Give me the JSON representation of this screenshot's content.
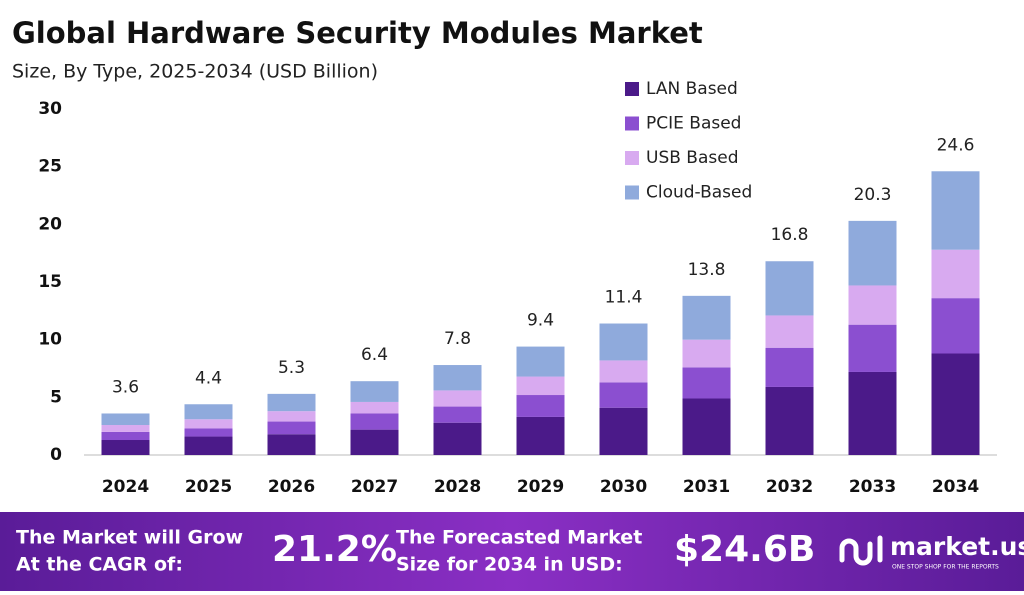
{
  "chart_data": {
    "type": "stacked-bar",
    "title": "Global Hardware Security Modules Market",
    "subtitle": "Size, By Type, 2025-2034 (USD Billion)",
    "categories": [
      "2024",
      "2025",
      "2026",
      "2027",
      "2028",
      "2029",
      "2030",
      "2031",
      "2032",
      "2033",
      "2034"
    ],
    "series": [
      {
        "name": "LAN Based",
        "color": "#4b1a89",
        "values": [
          1.3,
          1.6,
          1.8,
          2.2,
          2.8,
          3.3,
          4.1,
          4.9,
          5.9,
          7.2,
          8.8
        ]
      },
      {
        "name": "PCIE Based",
        "color": "#8b4fd0",
        "values": [
          0.7,
          0.7,
          1.1,
          1.4,
          1.4,
          1.9,
          2.2,
          2.7,
          3.4,
          4.1,
          4.8
        ]
      },
      {
        "name": "USB Based",
        "color": "#d8aaf0",
        "values": [
          0.6,
          0.8,
          0.9,
          1.0,
          1.4,
          1.6,
          1.9,
          2.4,
          2.8,
          3.4,
          4.2
        ]
      },
      {
        "name": "Cloud-Based",
        "color": "#8faadc",
        "values": [
          1.0,
          1.3,
          1.5,
          1.8,
          2.2,
          2.6,
          3.2,
          3.8,
          4.7,
          5.6,
          6.8
        ]
      }
    ],
    "totals": [
      3.6,
      4.4,
      5.3,
      6.4,
      7.8,
      9.4,
      11.4,
      13.8,
      16.8,
      20.3,
      24.6
    ],
    "ylim": [
      0,
      30
    ],
    "yticks": [
      0,
      5,
      10,
      15,
      20,
      25,
      30
    ],
    "grid": false
  },
  "footer": {
    "cagr_text_1": "The Market will Grow",
    "cagr_text_2": "At the CAGR of:",
    "cagr": "21.2%",
    "forecast_text_1": "The Forecasted Market",
    "forecast_text_2": "Size for 2034 in USD:",
    "forecast": "$24.6B",
    "brand": "market.us",
    "tagline": "ONE STOP SHOP FOR THE REPORTS"
  }
}
